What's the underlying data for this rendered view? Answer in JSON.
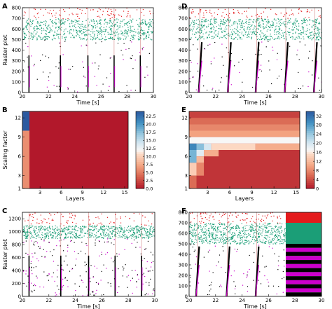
{
  "colors": {
    "excitatory": "#e41a1c",
    "inhibitory": "#1b9e77",
    "other": "#000000",
    "highlight": "#cc00cc",
    "stim_line": "#b22222"
  },
  "chart_data": [
    {
      "panel": "A",
      "type": "scatter",
      "xlabel": "Time [s]",
      "ylabel": "Raster plot",
      "xlim": [
        20,
        30
      ],
      "ylim": [
        0,
        800
      ],
      "xticks": [
        "20",
        "22",
        "24",
        "26",
        "28",
        "30"
      ],
      "yticks": [
        "0",
        "100",
        "200",
        "300",
        "400",
        "500",
        "600",
        "700",
        "800"
      ],
      "bands": [
        {
          "name": "",
          "color": "#e41a1c",
          "ymin": 700,
          "ymax": 800,
          "density": "sparse"
        },
        {
          "name": "",
          "color": "#1b9e77",
          "ymin": 500,
          "ymax": 700,
          "density": "dense"
        },
        {
          "name": "",
          "color": "#000000",
          "ymin": 0,
          "ymax": 500,
          "density": "sparse"
        }
      ],
      "vertical_events": [
        20.5,
        22.9,
        25.0,
        27.0,
        29.0
      ]
    },
    {
      "panel": "D",
      "type": "scatter",
      "xlabel": "Time [s]",
      "ylabel": "",
      "xlim": [
        20,
        30
      ],
      "ylim": [
        0,
        800
      ],
      "xticks": [
        "20",
        "22",
        "24",
        "26",
        "28",
        "30"
      ],
      "yticks": [
        "0",
        "100",
        "200",
        "300",
        "400",
        "500",
        "600",
        "700",
        "800"
      ],
      "bands": [
        {
          "name": "",
          "color": "#e41a1c",
          "ymin": 700,
          "ymax": 800,
          "density": "sparse"
        },
        {
          "name": "",
          "color": "#1b9e77",
          "ymin": 500,
          "ymax": 700,
          "density": "dense"
        },
        {
          "name": "",
          "color": "#000000",
          "ymin": 0,
          "ymax": 500,
          "density": "sparse"
        }
      ],
      "vertical_events": [
        20.8,
        23.0,
        25.1,
        27.3,
        29.5
      ]
    },
    {
      "panel": "B",
      "type": "heatmap",
      "xlabel": "Layers",
      "ylabel": "Scaling factor",
      "xlim": [
        1,
        16
      ],
      "ylim": [
        1,
        13
      ],
      "xticks": [
        "3",
        "6",
        "9",
        "12",
        "15"
      ],
      "yticks": [
        "1",
        "3",
        "6",
        "9",
        "12"
      ],
      "colorbar": {
        "min": 0,
        "max": 24,
        "ticks": [
          "0.0",
          "2.5",
          "5.0",
          "7.5",
          "10.0",
          "12.5",
          "15.0",
          "17.5",
          "20.0",
          "22.5"
        ]
      },
      "background_value": 0,
      "cells": [
        {
          "x0": 1,
          "x1": 2,
          "y0": 1,
          "y1": 10,
          "value": 6
        },
        {
          "x0": 1,
          "x1": 2,
          "y0": 10,
          "y1": 13,
          "value": 24
        }
      ]
    },
    {
      "panel": "E",
      "type": "heatmap",
      "xlabel": "Layers",
      "ylabel": "",
      "xlim": [
        1,
        16
      ],
      "ylim": [
        1,
        13
      ],
      "xticks": [
        "3",
        "6",
        "9",
        "12",
        "15"
      ],
      "yticks": [
        "1",
        "3",
        "6",
        "9",
        "12"
      ],
      "colorbar": {
        "min": 0,
        "max": 34,
        "ticks": [
          "0",
          "4",
          "8",
          "12",
          "16",
          "20",
          "24",
          "28",
          "32"
        ]
      },
      "background_value": 2,
      "cells": [
        {
          "x0": 1,
          "x1": 16,
          "y0": 12,
          "y1": 13,
          "value": 3
        },
        {
          "x0": 1,
          "x1": 16,
          "y0": 11,
          "y1": 12,
          "value": 6
        },
        {
          "x0": 1,
          "x1": 16,
          "y0": 10,
          "y1": 11,
          "value": 8
        },
        {
          "x0": 1,
          "x1": 16,
          "y0": 9,
          "y1": 10,
          "value": 10
        },
        {
          "x0": 1,
          "x1": 16,
          "y0": 8,
          "y1": 9,
          "value": 17
        },
        {
          "x0": 1,
          "x1": 2,
          "y0": 7,
          "y1": 8,
          "value": 30
        },
        {
          "x0": 2,
          "x1": 3,
          "y0": 7,
          "y1": 8,
          "value": 25
        },
        {
          "x0": 3,
          "x1": 4,
          "y0": 7,
          "y1": 8,
          "value": 20
        },
        {
          "x0": 4,
          "x1": 10,
          "y0": 7,
          "y1": 8,
          "value": 15
        },
        {
          "x0": 1,
          "x1": 2,
          "y0": 5,
          "y1": 7,
          "value": 26
        },
        {
          "x0": 2,
          "x1": 3,
          "y0": 6,
          "y1": 7,
          "value": 19
        },
        {
          "x0": 2,
          "x1": 3,
          "y0": 5,
          "y1": 6,
          "value": 12
        },
        {
          "x0": 3,
          "x1": 5,
          "y0": 6,
          "y1": 7,
          "value": 11
        },
        {
          "x0": 1,
          "x1": 2,
          "y0": 3,
          "y1": 5,
          "value": 14
        },
        {
          "x0": 2,
          "x1": 3,
          "y0": 3,
          "y1": 5,
          "value": 8
        },
        {
          "x0": 1,
          "x1": 2,
          "y0": 1,
          "y1": 3,
          "value": 6
        },
        {
          "x0": 10,
          "x1": 16,
          "y0": 7,
          "y1": 8,
          "value": 11
        }
      ]
    },
    {
      "panel": "C",
      "type": "scatter",
      "xlabel": "Time [s]",
      "ylabel": "Raster plot",
      "xlim": [
        20,
        30
      ],
      "ylim": [
        0,
        1300
      ],
      "xticks": [
        "20",
        "22",
        "24",
        "26",
        "28",
        "30"
      ],
      "yticks": [
        "0",
        "200",
        "400",
        "600",
        "800",
        "1000",
        "1200"
      ],
      "bands": [
        {
          "name": "",
          "color": "#e41a1c",
          "ymin": 1100,
          "ymax": 1300,
          "density": "sparse"
        },
        {
          "name": "",
          "color": "#1b9e77",
          "ymin": 900,
          "ymax": 1100,
          "density": "dense"
        },
        {
          "name": "",
          "color": "#000000",
          "ymin": 0,
          "ymax": 900,
          "density": "medium"
        }
      ],
      "vertical_events": [
        20.5,
        22.9,
        25.0,
        27.0,
        29.0
      ]
    },
    {
      "panel": "F",
      "type": "scatter",
      "xlabel": "Time [s]",
      "ylabel": "",
      "xlim": [
        20,
        30
      ],
      "ylim": [
        0,
        800
      ],
      "xticks": [
        "20",
        "22",
        "24",
        "26",
        "28",
        "30"
      ],
      "yticks": [
        "0",
        "100",
        "200",
        "300",
        "400",
        "500",
        "600",
        "700",
        "800"
      ],
      "bands": [
        {
          "name": "",
          "color": "#e41a1c",
          "ymin": 700,
          "ymax": 800,
          "density": "sparse"
        },
        {
          "name": "",
          "color": "#1b9e77",
          "ymin": 500,
          "ymax": 700,
          "density": "dense"
        },
        {
          "name": "",
          "color": "#000000",
          "ymin": 0,
          "ymax": 500,
          "density": "sparse"
        }
      ],
      "vertical_events": [
        20.6,
        22.9,
        25.1
      ],
      "saturated_interval": [
        27.3,
        30
      ]
    }
  ]
}
